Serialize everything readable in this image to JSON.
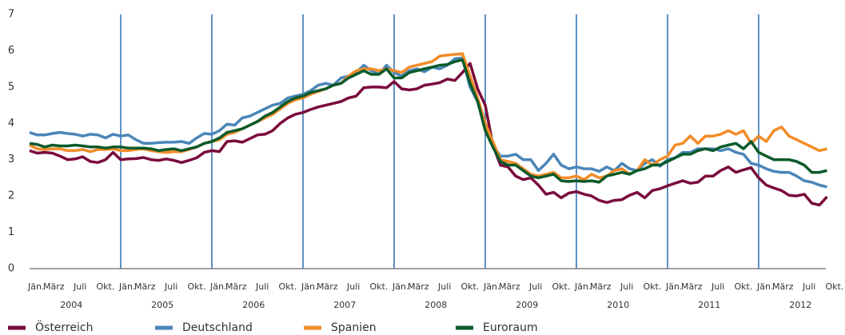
{
  "chart_data": {
    "type": "line",
    "categories": [
      "Jän.",
      null,
      "März",
      null,
      null,
      null,
      "Juli",
      null,
      null,
      "Okt.",
      null,
      null,
      "Jän.",
      null,
      "März",
      null,
      null,
      null,
      "Juli",
      null,
      null,
      "Okt.",
      null,
      null,
      "Jän.",
      null,
      "März",
      null,
      null,
      null,
      "Juli",
      null,
      null,
      "Okt.",
      null,
      null,
      "Jän.",
      null,
      "März",
      null,
      null,
      null,
      "Juli",
      null,
      null,
      "Okt.",
      null,
      null,
      "Jän.",
      null,
      "März",
      null,
      null,
      null,
      "Juli",
      null,
      null,
      "Okt.",
      null,
      null,
      "Jän.",
      null,
      "März",
      null,
      null,
      null,
      "Juli",
      null,
      null,
      "Okt.",
      null,
      null,
      "Jän.",
      null,
      "März",
      null,
      null,
      null,
      "Juli",
      null,
      null,
      "Okt.",
      null,
      null,
      "Jän.",
      null,
      "März",
      null,
      null,
      null,
      "Juli",
      null,
      null,
      "Okt.",
      null,
      null,
      "Jän.",
      null,
      "März",
      null,
      null,
      null,
      "Juli",
      null,
      null,
      "Okt."
    ],
    "year_labels": [
      "2004",
      "2005",
      "2006",
      "2007",
      "2008",
      "2009",
      "2010",
      "2011",
      "2012"
    ],
    "ylim": [
      0,
      7
    ],
    "yticks": [
      0,
      1,
      2,
      3,
      4,
      5,
      6,
      7
    ],
    "year_lines": true,
    "series": [
      {
        "name": "Österreich",
        "color": "#7a0a3c",
        "values": [
          3.25,
          3.18,
          3.2,
          3.18,
          3.1,
          3.0,
          3.02,
          3.08,
          2.95,
          2.92,
          3.0,
          3.2,
          3.0,
          3.02,
          3.03,
          3.06,
          3.0,
          2.98,
          3.02,
          2.98,
          2.92,
          2.98,
          3.05,
          3.2,
          3.25,
          3.22,
          3.5,
          3.52,
          3.48,
          3.58,
          3.68,
          3.7,
          3.8,
          4.0,
          4.15,
          4.25,
          4.3,
          4.38,
          4.45,
          4.5,
          4.55,
          4.6,
          4.7,
          4.75,
          4.98,
          5.0,
          5.0,
          4.98,
          5.15,
          4.95,
          4.92,
          4.95,
          5.05,
          5.08,
          5.12,
          5.22,
          5.18,
          5.4,
          5.65,
          4.95,
          4.5,
          3.4,
          2.85,
          2.8,
          2.55,
          2.45,
          2.5,
          2.3,
          2.05,
          2.1,
          1.95,
          2.08,
          2.12,
          2.05,
          2.0,
          1.88,
          1.82,
          1.88,
          1.9,
          2.02,
          2.1,
          1.95,
          2.15,
          2.2,
          2.28,
          2.35,
          2.42,
          2.35,
          2.38,
          2.55,
          2.55,
          2.7,
          2.8,
          2.65,
          2.72,
          2.78,
          2.5,
          2.3,
          2.22,
          2.15,
          2.02,
          2.0,
          2.05,
          1.8,
          1.75,
          1.98
        ]
      },
      {
        "name": "Deutschland",
        "color": "#4a86b8",
        "values": [
          3.75,
          3.68,
          3.68,
          3.72,
          3.75,
          3.72,
          3.7,
          3.65,
          3.7,
          3.68,
          3.6,
          3.7,
          3.65,
          3.68,
          3.55,
          3.45,
          3.45,
          3.47,
          3.48,
          3.48,
          3.5,
          3.45,
          3.6,
          3.72,
          3.7,
          3.8,
          3.98,
          3.95,
          4.15,
          4.2,
          4.3,
          4.4,
          4.5,
          4.55,
          4.7,
          4.75,
          4.8,
          4.9,
          5.05,
          5.1,
          5.05,
          5.25,
          5.3,
          5.4,
          5.6,
          5.45,
          5.35,
          5.6,
          5.4,
          5.3,
          5.45,
          5.5,
          5.42,
          5.55,
          5.5,
          5.6,
          5.78,
          5.8,
          5.0,
          4.6,
          3.9,
          3.4,
          3.1,
          3.1,
          3.15,
          3.0,
          3.0,
          2.7,
          2.9,
          3.15,
          2.85,
          2.75,
          2.8,
          2.75,
          2.75,
          2.68,
          2.8,
          2.7,
          2.9,
          2.75,
          2.7,
          2.9,
          3.0,
          2.82,
          3.0,
          3.05,
          3.2,
          3.2,
          3.3,
          3.3,
          3.3,
          3.25,
          3.3,
          3.2,
          3.15,
          2.9,
          2.85,
          2.75,
          2.68,
          2.65,
          2.65,
          2.55,
          2.42,
          2.38,
          2.3,
          2.25
        ]
      },
      {
        "name": "Spanien",
        "color": "#f28c28",
        "values": [
          3.4,
          3.3,
          3.28,
          3.3,
          3.3,
          3.25,
          3.25,
          3.28,
          3.22,
          3.28,
          3.28,
          3.3,
          3.25,
          3.25,
          3.28,
          3.3,
          3.25,
          3.22,
          3.2,
          3.22,
          3.22,
          3.28,
          3.35,
          3.45,
          3.5,
          3.55,
          3.7,
          3.75,
          3.85,
          3.95,
          4.05,
          4.15,
          4.25,
          4.4,
          4.55,
          4.65,
          4.7,
          4.8,
          4.88,
          4.95,
          5.05,
          5.1,
          5.3,
          5.45,
          5.5,
          5.5,
          5.45,
          5.5,
          5.45,
          5.4,
          5.55,
          5.6,
          5.65,
          5.7,
          5.85,
          5.88,
          5.9,
          5.92,
          5.3,
          4.7,
          4.0,
          3.5,
          3.0,
          2.95,
          2.9,
          2.75,
          2.6,
          2.55,
          2.6,
          2.65,
          2.5,
          2.5,
          2.55,
          2.45,
          2.6,
          2.5,
          2.55,
          2.7,
          2.75,
          2.6,
          2.7,
          3.0,
          2.85,
          3.0,
          3.1,
          3.4,
          3.45,
          3.65,
          3.45,
          3.65,
          3.65,
          3.7,
          3.8,
          3.7,
          3.8,
          3.45,
          3.65,
          3.5,
          3.8,
          3.9,
          3.65,
          3.55,
          3.45,
          3.35,
          3.25,
          3.3
        ]
      },
      {
        "name": "Euroraum",
        "color": "#0b5a2a",
        "values": [
          3.45,
          3.42,
          3.35,
          3.4,
          3.38,
          3.38,
          3.4,
          3.38,
          3.35,
          3.35,
          3.32,
          3.35,
          3.35,
          3.32,
          3.32,
          3.32,
          3.3,
          3.25,
          3.28,
          3.3,
          3.25,
          3.3,
          3.35,
          3.45,
          3.5,
          3.6,
          3.75,
          3.8,
          3.85,
          3.95,
          4.05,
          4.2,
          4.3,
          4.45,
          4.6,
          4.7,
          4.75,
          4.85,
          4.9,
          4.95,
          5.05,
          5.1,
          5.25,
          5.35,
          5.45,
          5.35,
          5.35,
          5.5,
          5.25,
          5.25,
          5.4,
          5.45,
          5.5,
          5.55,
          5.6,
          5.62,
          5.7,
          5.75,
          5.1,
          4.6,
          3.8,
          3.35,
          2.95,
          2.85,
          2.85,
          2.7,
          2.55,
          2.5,
          2.55,
          2.6,
          2.42,
          2.4,
          2.42,
          2.4,
          2.42,
          2.38,
          2.55,
          2.6,
          2.65,
          2.6,
          2.7,
          2.75,
          2.85,
          2.85,
          2.95,
          3.05,
          3.15,
          3.15,
          3.25,
          3.3,
          3.25,
          3.35,
          3.4,
          3.45,
          3.3,
          3.5,
          3.2,
          3.1,
          3.0,
          3.0,
          3.0,
          2.95,
          2.85,
          2.65,
          2.65,
          2.7
        ]
      }
    ]
  }
}
